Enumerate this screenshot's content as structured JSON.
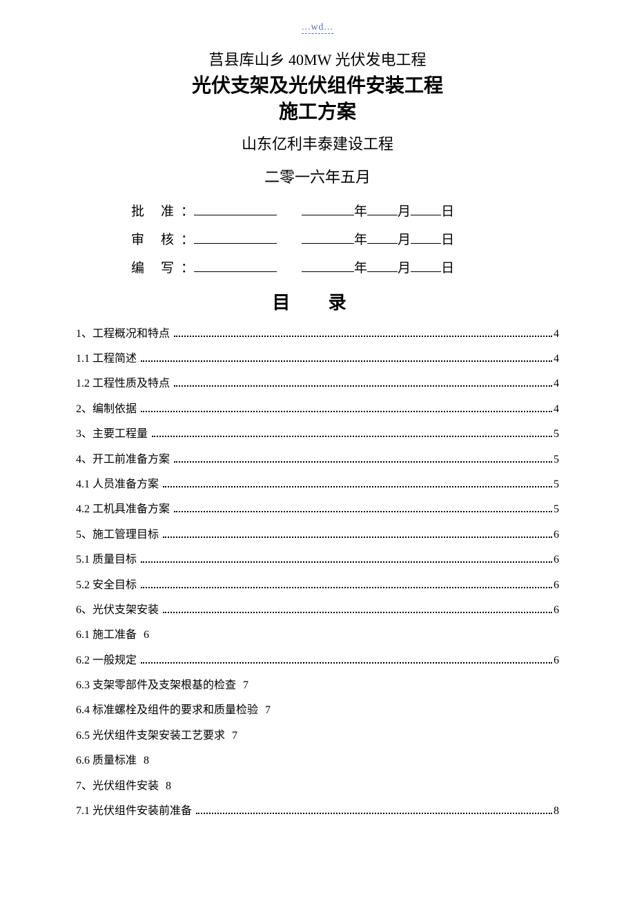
{
  "header_wd": "...wd...",
  "project_line": "莒县库山乡 40MW 光伏发电工程",
  "title_line1": "光伏支架及光伏组件安装工程",
  "title_line2": "施工方案",
  "company": "山东亿利丰泰建设工程",
  "date_line": "二零一六年五月",
  "sig": {
    "approve": "批准",
    "review": "审核",
    "compile": "编写",
    "colon": "：",
    "year": "年",
    "month": "月",
    "day": "日"
  },
  "toc_title": "目 录",
  "toc": [
    {
      "label": "1、工程概况和特点",
      "page": "4",
      "dots": true
    },
    {
      "label": "1.1 工程简述",
      "page": "4",
      "dots": true
    },
    {
      "label": "1.2 工程性质及特点",
      "page": "4",
      "dots": true
    },
    {
      "label": "2、编制依据",
      "page": "4",
      "dots": true
    },
    {
      "label": "3、主要工程量",
      "page": "5",
      "dots": true
    },
    {
      "label": "4、开工前准备方案",
      "page": "5",
      "dots": true
    },
    {
      "label": "4.1 人员准备方案",
      "page": "5",
      "dots": true
    },
    {
      "label": "4.2 工机具准备方案",
      "page": "5",
      "dots": true
    },
    {
      "label": "5、施工管理目标",
      "page": "6",
      "dots": true
    },
    {
      "label": "5.1 质量目标",
      "page": "6",
      "dots": true
    },
    {
      "label": "5.2 安全目标",
      "page": "6",
      "dots": true
    },
    {
      "label": "6、光伏支架安装",
      "page": "6",
      "dots": true
    },
    {
      "label": "6.1 施工准备",
      "page": "6",
      "dots": false
    },
    {
      "label": "6.2 一般规定",
      "page": "6",
      "dots": true
    },
    {
      "label": "6.3 支架零部件及支架根基的检查",
      "page": "7",
      "dots": false
    },
    {
      "label": "6.4 标准螺栓及组件的要求和质量检验",
      "page": "7",
      "dots": false
    },
    {
      "label": "6.5 光伏组件支架安装工艺要求",
      "page": "7",
      "dots": false
    },
    {
      "label": "6.6 质量标准",
      "page": "8",
      "dots": false
    },
    {
      "label": "7、光伏组件安装",
      "page": "8",
      "dots": false
    },
    {
      "label": "7.1 光伏组件安装前准备",
      "page": "8",
      "dots": true
    }
  ]
}
